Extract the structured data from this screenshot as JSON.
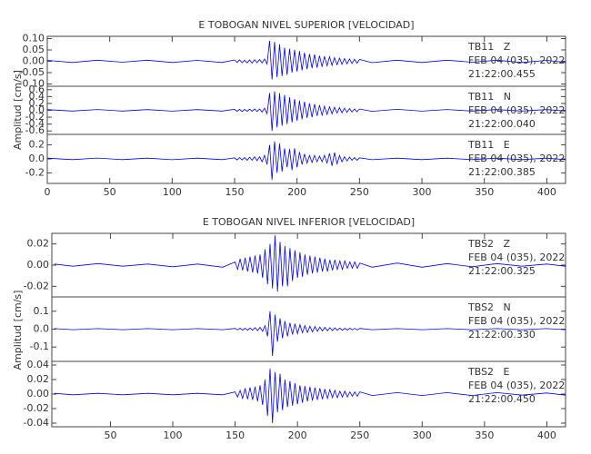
{
  "chart_data": [
    {
      "type": "line",
      "title": "E TOBOGAN NIVEL SUPERIOR [VELOCIDAD]",
      "ylabel": "Amplitud [cm/s]",
      "color": "#0000ff",
      "xlim": [
        0,
        415
      ],
      "xticks": [
        0,
        50,
        100,
        150,
        200,
        250,
        300,
        350,
        400
      ],
      "x": [
        0,
        20,
        40,
        60,
        80,
        100,
        120,
        140,
        150,
        152,
        154,
        156,
        158,
        160,
        162,
        164,
        166,
        168,
        170,
        172,
        174,
        176,
        178,
        180,
        182,
        184,
        186,
        188,
        190,
        192,
        194,
        196,
        198,
        200,
        202,
        204,
        206,
        208,
        210,
        212,
        214,
        216,
        218,
        220,
        222,
        224,
        226,
        228,
        230,
        232,
        234,
        236,
        238,
        240,
        242,
        244,
        246,
        248,
        250,
        260,
        280,
        300,
        320,
        340,
        360,
        380,
        400,
        415
      ],
      "panels": [
        {
          "station": "TB11   Z",
          "date": "FEB 04 (035), 2022",
          "time": "21:22:00.455",
          "ylim": [
            -0.11,
            0.11
          ],
          "yticks": [
            {
              "value": 0.1,
              "label": "0.10"
            },
            0.05,
            {
              "value": 0,
              "label": "0.00"
            },
            -0.05,
            {
              "value": -0.1,
              "label": "-0.10"
            }
          ],
          "values": [
            0.004,
            -0.005,
            0.005,
            -0.004,
            0.005,
            -0.005,
            0.004,
            -0.005,
            0.006,
            -0.005,
            0.007,
            -0.006,
            0.005,
            -0.007,
            0.006,
            -0.008,
            0.007,
            -0.006,
            0.008,
            -0.007,
            0.01,
            -0.012,
            0.09,
            -0.08,
            0.085,
            -0.07,
            0.075,
            -0.065,
            0.06,
            -0.06,
            0.055,
            -0.05,
            0.05,
            -0.045,
            0.045,
            -0.04,
            0.038,
            -0.035,
            0.032,
            -0.03,
            0.03,
            -0.028,
            0.025,
            -0.024,
            0.022,
            -0.02,
            0.02,
            -0.018,
            0.016,
            -0.015,
            0.014,
            -0.013,
            0.012,
            -0.011,
            0.01,
            -0.01,
            0.009,
            -0.008,
            0.008,
            -0.006,
            0.005,
            -0.005,
            0.005,
            -0.004,
            0.005,
            -0.005,
            0.004,
            -0.005
          ]
        },
        {
          "station": "TB11   N",
          "date": "FEB 04 (035), 2022",
          "time": "21:22:00.040",
          "ylim": [
            -0.7,
            0.7
          ],
          "yticks": [
            0.6,
            0.4,
            0.2,
            {
              "value": 0,
              "label": "0.0"
            },
            -0.2,
            -0.4,
            -0.6
          ],
          "values": [
            0.02,
            -0.02,
            0.025,
            -0.02,
            0.02,
            -0.025,
            0.02,
            -0.02,
            0.03,
            -0.03,
            0.03,
            -0.035,
            0.03,
            -0.03,
            0.035,
            -0.03,
            0.04,
            -0.035,
            0.04,
            -0.05,
            0.06,
            -0.1,
            0.5,
            -0.6,
            0.55,
            -0.5,
            0.5,
            -0.45,
            0.45,
            -0.4,
            0.38,
            -0.35,
            0.33,
            -0.3,
            0.28,
            -0.26,
            0.25,
            -0.22,
            0.2,
            -0.2,
            0.18,
            -0.16,
            0.15,
            -0.14,
            0.12,
            -0.12,
            0.1,
            -0.1,
            0.09,
            -0.08,
            0.08,
            -0.07,
            0.06,
            -0.06,
            0.05,
            -0.05,
            0.04,
            -0.04,
            0.04,
            -0.03,
            0.03,
            -0.025,
            0.025,
            -0.02,
            0.02,
            -0.02,
            0.02,
            -0.02
          ]
        },
        {
          "station": "TB11   E",
          "date": "FEB 04 (035), 2022",
          "time": "21:22:00.385",
          "ylim": [
            -0.35,
            0.35
          ],
          "yticks": [
            0.2,
            {
              "value": 0,
              "label": "0.0"
            },
            -0.2
          ],
          "values": [
            0.01,
            -0.01,
            0.012,
            -0.01,
            0.01,
            -0.012,
            0.01,
            -0.01,
            0.015,
            -0.015,
            0.02,
            -0.015,
            0.02,
            -0.02,
            0.025,
            -0.02,
            0.03,
            -0.025,
            0.03,
            -0.04,
            0.05,
            -0.08,
            0.2,
            -0.3,
            0.25,
            -0.2,
            0.22,
            -0.18,
            0.15,
            -0.12,
            0.14,
            -0.16,
            0.15,
            -0.12,
            0.1,
            -0.08,
            0.07,
            -0.06,
            0.05,
            -0.05,
            0.05,
            -0.04,
            0.04,
            -0.04,
            0.05,
            -0.06,
            0.08,
            -0.1,
            0.09,
            -0.07,
            0.05,
            -0.04,
            0.03,
            -0.03,
            0.025,
            -0.02,
            0.02,
            -0.02,
            0.015,
            -0.012,
            0.01,
            -0.01,
            0.01,
            -0.01,
            0.01,
            -0.01,
            0.01,
            -0.01
          ]
        }
      ]
    },
    {
      "type": "line",
      "title": "E TOBOGAN NIVEL INFERIOR [VELOCIDAD]",
      "ylabel": "Amplitud [cm/s]",
      "color": "#0000ff",
      "xlim": [
        3,
        415
      ],
      "xticks": [
        50,
        100,
        150,
        200,
        250,
        300,
        350,
        400
      ],
      "x": [
        5,
        20,
        40,
        60,
        80,
        100,
        120,
        140,
        150,
        152,
        154,
        156,
        158,
        160,
        162,
        164,
        166,
        168,
        170,
        172,
        174,
        176,
        178,
        180,
        182,
        184,
        186,
        188,
        190,
        192,
        194,
        196,
        198,
        200,
        202,
        204,
        206,
        208,
        210,
        212,
        214,
        216,
        218,
        220,
        222,
        224,
        226,
        228,
        230,
        232,
        234,
        236,
        238,
        240,
        242,
        244,
        246,
        248,
        250,
        260,
        280,
        300,
        320,
        340,
        360,
        380,
        400,
        415
      ],
      "panels": [
        {
          "station": "TBS2   Z",
          "date": "FEB 04 (035), 2022",
          "time": "21:22:00.325",
          "ylim": [
            -0.03,
            0.03
          ],
          "yticks": [
            0.02,
            {
              "value": 0,
              "label": "0.00"
            },
            -0.02
          ],
          "values": [
            0.001,
            -0.001,
            0.0015,
            -0.001,
            0.001,
            -0.0015,
            0.001,
            -0.002,
            0.003,
            -0.004,
            0.006,
            -0.005,
            0.007,
            -0.006,
            0.008,
            -0.007,
            0.009,
            -0.008,
            0.01,
            -0.012,
            0.015,
            -0.018,
            0.02,
            -0.022,
            0.028,
            -0.025,
            0.022,
            -0.02,
            0.018,
            -0.02,
            0.016,
            -0.015,
            0.014,
            -0.012,
            0.012,
            -0.011,
            0.01,
            -0.009,
            0.009,
            -0.008,
            0.008,
            -0.007,
            0.007,
            -0.006,
            0.006,
            -0.006,
            0.005,
            -0.005,
            0.005,
            -0.004,
            0.004,
            -0.004,
            0.004,
            -0.003,
            0.003,
            -0.003,
            0.003,
            -0.003,
            0.002,
            -0.002,
            0.002,
            -0.002,
            0.0015,
            -0.0015,
            0.0015,
            -0.001,
            0.001,
            -0.001
          ]
        },
        {
          "station": "TBS2   N",
          "date": "FEB 04 (035), 2022",
          "time": "21:22:00.330",
          "ylim": [
            -0.18,
            0.18
          ],
          "yticks": [
            0.1,
            {
              "value": 0,
              "label": "0.0"
            },
            -0.1
          ],
          "values": [
            0.003,
            -0.003,
            0.003,
            -0.003,
            0.003,
            -0.003,
            0.003,
            -0.003,
            0.004,
            -0.004,
            0.005,
            -0.005,
            0.005,
            -0.006,
            0.006,
            -0.006,
            0.008,
            -0.008,
            0.01,
            -0.012,
            0.02,
            -0.04,
            0.1,
            -0.15,
            0.08,
            -0.07,
            0.06,
            -0.05,
            0.045,
            -0.04,
            0.035,
            -0.03,
            0.03,
            -0.025,
            0.025,
            -0.02,
            0.02,
            -0.018,
            0.016,
            -0.015,
            0.014,
            -0.012,
            0.011,
            -0.01,
            0.01,
            -0.009,
            0.008,
            -0.008,
            0.007,
            -0.006,
            0.006,
            -0.006,
            0.005,
            -0.005,
            0.005,
            -0.004,
            0.004,
            -0.004,
            0.004,
            -0.003,
            0.003,
            -0.003,
            0.003,
            -0.003,
            0.003,
            -0.003,
            0.003,
            -0.003
          ]
        },
        {
          "station": "TBS2   E",
          "date": "FEB 04 (035), 2022",
          "time": "21:22:00.450",
          "ylim": [
            -0.045,
            0.045
          ],
          "yticks": [
            0.04,
            0.02,
            {
              "value": 0,
              "label": "0.00"
            },
            -0.02,
            -0.04
          ],
          "values": [
            0.001,
            -0.001,
            0.001,
            -0.001,
            0.001,
            -0.001,
            0.001,
            -0.001,
            0.003,
            -0.004,
            0.005,
            -0.006,
            0.008,
            -0.007,
            0.009,
            -0.008,
            0.01,
            -0.01,
            0.012,
            -0.015,
            0.02,
            -0.03,
            0.035,
            -0.04,
            0.03,
            -0.025,
            0.028,
            -0.022,
            0.02,
            -0.018,
            0.018,
            -0.016,
            0.015,
            -0.014,
            0.012,
            -0.012,
            0.011,
            -0.01,
            0.01,
            -0.009,
            0.009,
            -0.008,
            0.008,
            -0.007,
            0.007,
            -0.006,
            0.006,
            -0.005,
            0.005,
            -0.005,
            0.004,
            -0.004,
            0.004,
            -0.004,
            0.003,
            -0.003,
            0.003,
            -0.003,
            0.003,
            -0.002,
            0.002,
            -0.002,
            0.002,
            -0.002,
            0.002,
            -0.0015,
            0.0015,
            -0.0015
          ]
        }
      ]
    }
  ]
}
